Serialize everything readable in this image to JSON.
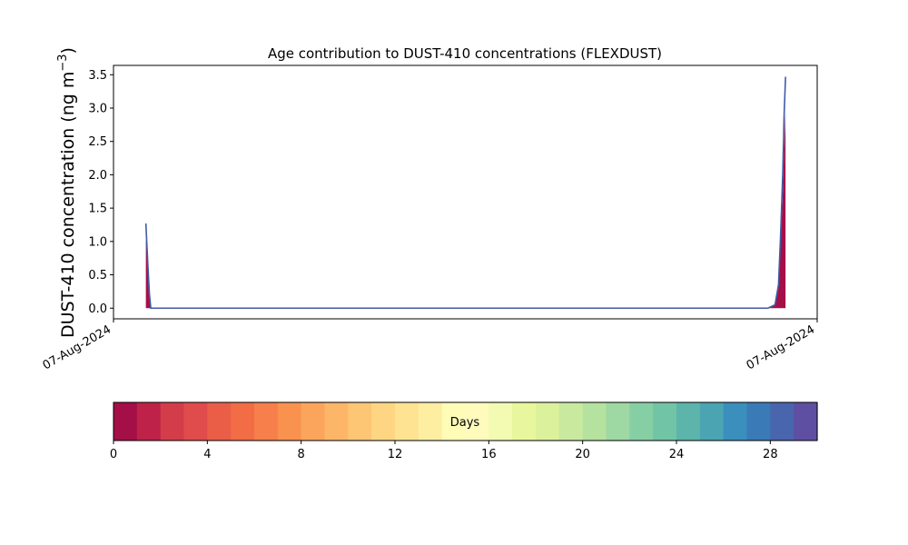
{
  "chart_data": {
    "type": "area",
    "title": "Age contribution to DUST-410 concentrations (FLEXDUST)",
    "ylabel": "DUST-410 concentration (ng m",
    "ylabel_unit_exponent": "−3",
    "ylabel_unit_close": ")",
    "ylim": [
      -0.16,
      3.64
    ],
    "yticks": [
      0.0,
      0.5,
      1.0,
      1.5,
      2.0,
      2.5,
      3.0,
      3.5
    ],
    "ytick_labels": [
      "0.0",
      "0.5",
      "1.0",
      "1.5",
      "2.0",
      "2.5",
      "3.0",
      "3.5"
    ],
    "xlim": [
      0,
      1
    ],
    "xtick_labels": [
      "07-Aug-2024",
      "07-Aug-2024"
    ],
    "grid": false,
    "total_line_color": "#3f5ba8",
    "fill_color": "#a50f47",
    "total_concentration": {
      "x": [
        0.046,
        0.047,
        0.049,
        0.051,
        0.053,
        0.055,
        0.93,
        0.94,
        0.945,
        0.948,
        0.951,
        0.953,
        0.955
      ],
      "y": [
        1.27,
        1.05,
        0.62,
        0.22,
        0.0,
        0.0,
        0.0,
        0.05,
        0.35,
        1.1,
        2.0,
        2.9,
        3.47
      ]
    },
    "youngest_age_contribution": {
      "x": [
        0.046,
        0.047,
        0.049,
        0.051,
        0.053,
        0.055,
        0.93,
        0.94,
        0.945,
        0.948,
        0.951,
        0.953,
        0.955
      ],
      "y": [
        1.05,
        0.9,
        0.55,
        0.2,
        0.0,
        0.0,
        0.0,
        0.04,
        0.3,
        0.95,
        1.7,
        2.4,
        2.95
      ]
    }
  },
  "colorbar": {
    "label": "Days",
    "range": [
      0,
      30
    ],
    "tick_values": [
      0,
      4,
      8,
      12,
      16,
      20,
      24,
      28
    ],
    "tick_labels": [
      "0",
      "4",
      "8",
      "12",
      "16",
      "20",
      "24",
      "28"
    ],
    "colors": [
      "#a50f47",
      "#bf2248",
      "#d33d4a",
      "#e04b4b",
      "#ea5e48",
      "#f26d45",
      "#f67f4b",
      "#f9914f",
      "#fba55c",
      "#fdb668",
      "#fdc675",
      "#fed683",
      "#fee393",
      "#feeea2",
      "#fefcb7",
      "#fefbbd",
      "#f3fab2",
      "#e8f69d",
      "#dbf19c",
      "#c9e99f",
      "#b5e29f",
      "#9ed8a3",
      "#86cfa4",
      "#72c4a6",
      "#5cb4aa",
      "#4ba4b1",
      "#3a8fbd",
      "#3a7bb7",
      "#4865ad",
      "#5e4fa2"
    ]
  }
}
